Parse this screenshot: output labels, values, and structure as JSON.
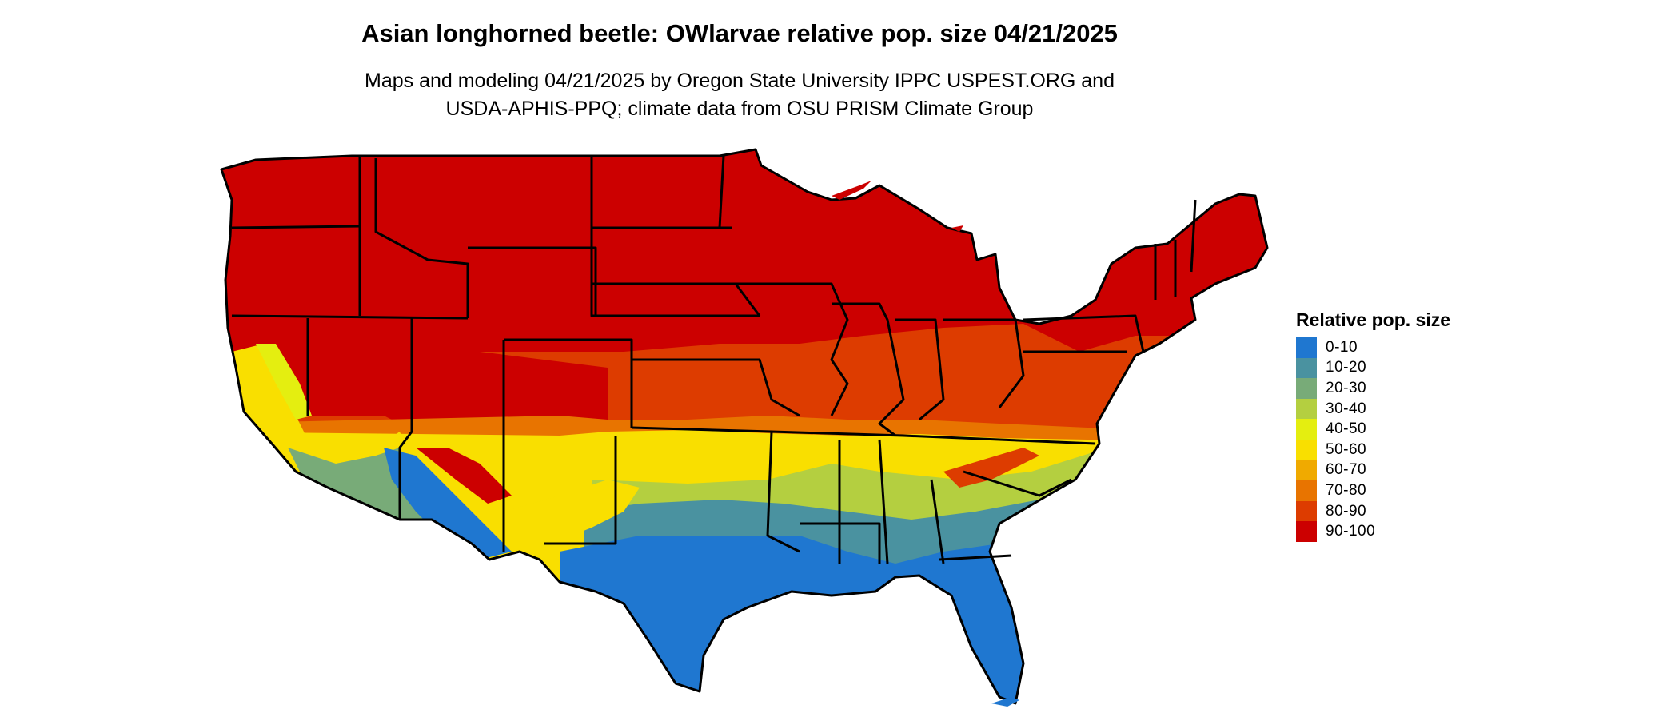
{
  "title": "Asian longhorned beetle: OWlarvae relative pop. size 04/21/2025",
  "subtitle_lines": [
    "Maps and modeling 04/21/2025 by Oregon State University IPPC USPEST.ORG and",
    "USDA-APHIS-PPQ; climate data from OSU PRISM Climate Group"
  ],
  "legend": {
    "title": "Relative pop. size",
    "items": [
      {
        "label": "0-10",
        "color": "#1f77d0"
      },
      {
        "label": "10-20",
        "color": "#4a92a0"
      },
      {
        "label": "20-30",
        "color": "#78ab78"
      },
      {
        "label": "30-40",
        "color": "#b4cf40"
      },
      {
        "label": "40-50",
        "color": "#e4ee10"
      },
      {
        "label": "50-60",
        "color": "#f9df00"
      },
      {
        "label": "60-70",
        "color": "#f0aa00"
      },
      {
        "label": "70-80",
        "color": "#e87400"
      },
      {
        "label": "80-90",
        "color": "#dd3c00"
      },
      {
        "label": "90-100",
        "color": "#cc0000"
      }
    ]
  }
}
